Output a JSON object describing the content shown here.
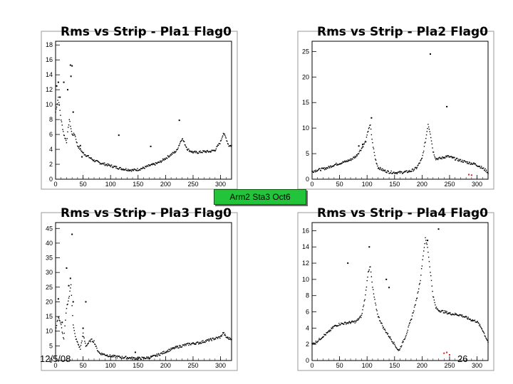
{
  "banner": {
    "label": "Arm2 Sta3 Oct6"
  },
  "footer": {
    "date": "12/5/08",
    "page": "26"
  },
  "colors": {
    "points": "#000000",
    "highlight": "#d92020",
    "banner_bg": "#22c53a",
    "frame": "#000000",
    "axis_frame": "#999999"
  },
  "chart_data": [
    {
      "type": "scatter",
      "title": "Rms vs Strip - Pla1 Flag0",
      "xlim": [
        0,
        320
      ],
      "ylim": [
        0,
        18.5
      ],
      "xticks": [
        0,
        50,
        100,
        150,
        200,
        250,
        300
      ],
      "yticks": [
        0,
        2,
        4,
        6,
        8,
        10,
        12,
        14,
        16,
        18
      ],
      "profile_points": [
        [
          0,
          9
        ],
        [
          5,
          11
        ],
        [
          10,
          8
        ],
        [
          15,
          6
        ],
        [
          20,
          5
        ],
        [
          25,
          8
        ],
        [
          30,
          6
        ],
        [
          35,
          6
        ],
        [
          40,
          4.5
        ],
        [
          45,
          4
        ],
        [
          50,
          3.5
        ],
        [
          60,
          3
        ],
        [
          70,
          2.5
        ],
        [
          80,
          2.2
        ],
        [
          90,
          2
        ],
        [
          100,
          1.8
        ],
        [
          110,
          1.6
        ],
        [
          120,
          1.4
        ],
        [
          130,
          1.3
        ],
        [
          140,
          1.2
        ],
        [
          150,
          1.3
        ],
        [
          160,
          1.5
        ],
        [
          170,
          1.8
        ],
        [
          180,
          2
        ],
        [
          190,
          2.3
        ],
        [
          200,
          2.8
        ],
        [
          210,
          3.3
        ],
        [
          220,
          3.8
        ],
        [
          230,
          5.5
        ],
        [
          240,
          4
        ],
        [
          250,
          3.6
        ],
        [
          260,
          3.6
        ],
        [
          270,
          3.7
        ],
        [
          280,
          3.7
        ],
        [
          290,
          3.9
        ],
        [
          300,
          5
        ],
        [
          305,
          6.2
        ],
        [
          310,
          5.5
        ],
        [
          315,
          4.5
        ],
        [
          320,
          4.5
        ]
      ],
      "outliers": [
        [
          2,
          12.5
        ],
        [
          5,
          13
        ],
        [
          8,
          11
        ],
        [
          15,
          13
        ],
        [
          22,
          12
        ],
        [
          27,
          15.3
        ],
        [
          28,
          13.8
        ],
        [
          30,
          15.2
        ],
        [
          32,
          9
        ],
        [
          45,
          4.5
        ],
        [
          48,
          3
        ],
        [
          115,
          5.9
        ],
        [
          173,
          4.4
        ],
        [
          225,
          7.9
        ]
      ],
      "highlight_points": []
    },
    {
      "type": "scatter",
      "title": "Rms vs Strip - Pla2 Flag0",
      "xlim": [
        0,
        320
      ],
      "ylim": [
        0,
        27
      ],
      "xticks": [
        0,
        50,
        100,
        150,
        200,
        250,
        300
      ],
      "yticks": [
        0,
        5,
        10,
        15,
        20,
        25
      ],
      "profile_points": [
        [
          0,
          1.5
        ],
        [
          10,
          1.8
        ],
        [
          20,
          2
        ],
        [
          30,
          2.3
        ],
        [
          40,
          2.8
        ],
        [
          50,
          3.1
        ],
        [
          60,
          3.4
        ],
        [
          70,
          3.8
        ],
        [
          80,
          4.5
        ],
        [
          90,
          6
        ],
        [
          98,
          7.5
        ],
        [
          103,
          10
        ],
        [
          106,
          10.5
        ],
        [
          110,
          7
        ],
        [
          115,
          4
        ],
        [
          120,
          2.3
        ],
        [
          130,
          1.7
        ],
        [
          140,
          1.4
        ],
        [
          150,
          1.3
        ],
        [
          160,
          1.3
        ],
        [
          170,
          1.4
        ],
        [
          180,
          1.6
        ],
        [
          190,
          2.2
        ],
        [
          200,
          4
        ],
        [
          207,
          8
        ],
        [
          211,
          10.8
        ],
        [
          215,
          9
        ],
        [
          220,
          5.5
        ],
        [
          225,
          4
        ],
        [
          235,
          4.1
        ],
        [
          245,
          4.5
        ],
        [
          255,
          4.2
        ],
        [
          265,
          3.8
        ],
        [
          275,
          3.5
        ],
        [
          285,
          3.2
        ],
        [
          295,
          3
        ],
        [
          305,
          2.5
        ],
        [
          315,
          1.8
        ],
        [
          320,
          1.3
        ]
      ],
      "outliers": [
        [
          85,
          6.5
        ],
        [
          92,
          6.8
        ],
        [
          108,
          12
        ],
        [
          215,
          24.5
        ],
        [
          245,
          14.2
        ]
      ],
      "highlight_points": [
        [
          285,
          0.9
        ],
        [
          290,
          0.8
        ]
      ]
    },
    {
      "type": "scatter",
      "title": "Rms vs Strip - Pla3 Flag0",
      "xlim": [
        0,
        320
      ],
      "ylim": [
        0,
        47
      ],
      "xticks": [
        0,
        50,
        100,
        150,
        200,
        250,
        300
      ],
      "yticks": [
        0,
        5,
        10,
        15,
        20,
        25,
        30,
        35,
        40,
        45
      ],
      "profile_points": [
        [
          0,
          10
        ],
        [
          5,
          15
        ],
        [
          10,
          12
        ],
        [
          15,
          7
        ],
        [
          20,
          18
        ],
        [
          25,
          22
        ],
        [
          28,
          26
        ],
        [
          32,
          12
        ],
        [
          36,
          8
        ],
        [
          40,
          6
        ],
        [
          45,
          4
        ],
        [
          50,
          9
        ],
        [
          55,
          5
        ],
        [
          60,
          6
        ],
        [
          65,
          7
        ],
        [
          70,
          6.5
        ],
        [
          75,
          4
        ],
        [
          80,
          2.5
        ],
        [
          90,
          2
        ],
        [
          100,
          1.5
        ],
        [
          110,
          1.3
        ],
        [
          120,
          1.1
        ],
        [
          130,
          1
        ],
        [
          140,
          0.8
        ],
        [
          150,
          0.7
        ],
        [
          160,
          0.8
        ],
        [
          170,
          1
        ],
        [
          180,
          1.5
        ],
        [
          190,
          2.2
        ],
        [
          200,
          3
        ],
        [
          210,
          3.8
        ],
        [
          220,
          4.5
        ],
        [
          230,
          5
        ],
        [
          240,
          5.5
        ],
        [
          250,
          5.8
        ],
        [
          260,
          6
        ],
        [
          270,
          6.5
        ],
        [
          280,
          7
        ],
        [
          290,
          7.5
        ],
        [
          300,
          8
        ],
        [
          305,
          9.5
        ],
        [
          310,
          8
        ],
        [
          315,
          7.5
        ],
        [
          320,
          7.5
        ]
      ],
      "outliers": [
        [
          5,
          21
        ],
        [
          12,
          13
        ],
        [
          20,
          31.5
        ],
        [
          24,
          25.5
        ],
        [
          27,
          28
        ],
        [
          30,
          43
        ],
        [
          32,
          20
        ],
        [
          50,
          11
        ],
        [
          55,
          20
        ],
        [
          145,
          2.8
        ]
      ],
      "highlight_points": []
    },
    {
      "type": "scatter",
      "title": "Rms vs Strip - Pla4 Flag0",
      "xlim": [
        0,
        320
      ],
      "ylim": [
        0,
        17
      ],
      "xticks": [
        0,
        50,
        100,
        150,
        200,
        250,
        300
      ],
      "yticks": [
        0,
        2,
        4,
        6,
        8,
        10,
        12,
        14,
        16
      ],
      "profile_points": [
        [
          0,
          2
        ],
        [
          10,
          2.4
        ],
        [
          20,
          3
        ],
        [
          30,
          3.5
        ],
        [
          40,
          4.2
        ],
        [
          50,
          4.5
        ],
        [
          60,
          4.6
        ],
        [
          70,
          4.7
        ],
        [
          80,
          4.8
        ],
        [
          90,
          5.5
        ],
        [
          97,
          8
        ],
        [
          102,
          11
        ],
        [
          106,
          11.5
        ],
        [
          110,
          9
        ],
        [
          115,
          7
        ],
        [
          120,
          5.5
        ],
        [
          130,
          4
        ],
        [
          140,
          3
        ],
        [
          150,
          2
        ],
        [
          157,
          1.2
        ],
        [
          160,
          1.5
        ],
        [
          170,
          3
        ],
        [
          180,
          5
        ],
        [
          190,
          7.5
        ],
        [
          197,
          10
        ],
        [
          202,
          13
        ],
        [
          206,
          15
        ],
        [
          210,
          14
        ],
        [
          215,
          11
        ],
        [
          220,
          8
        ],
        [
          225,
          6.5
        ],
        [
          230,
          6.2
        ],
        [
          240,
          6
        ],
        [
          250,
          5.8
        ],
        [
          260,
          5.7
        ],
        [
          270,
          5.6
        ],
        [
          280,
          5.3
        ],
        [
          290,
          5
        ],
        [
          300,
          4.8
        ],
        [
          310,
          3.8
        ],
        [
          315,
          3
        ],
        [
          320,
          2.3
        ]
      ],
      "outliers": [
        [
          65,
          12
        ],
        [
          104,
          14
        ],
        [
          135,
          10
        ],
        [
          140,
          9
        ],
        [
          230,
          16.2
        ],
        [
          210,
          14.8
        ]
      ],
      "highlight_points": [
        [
          240,
          0.9
        ],
        [
          245,
          1
        ],
        [
          250,
          0.7
        ]
      ]
    }
  ]
}
